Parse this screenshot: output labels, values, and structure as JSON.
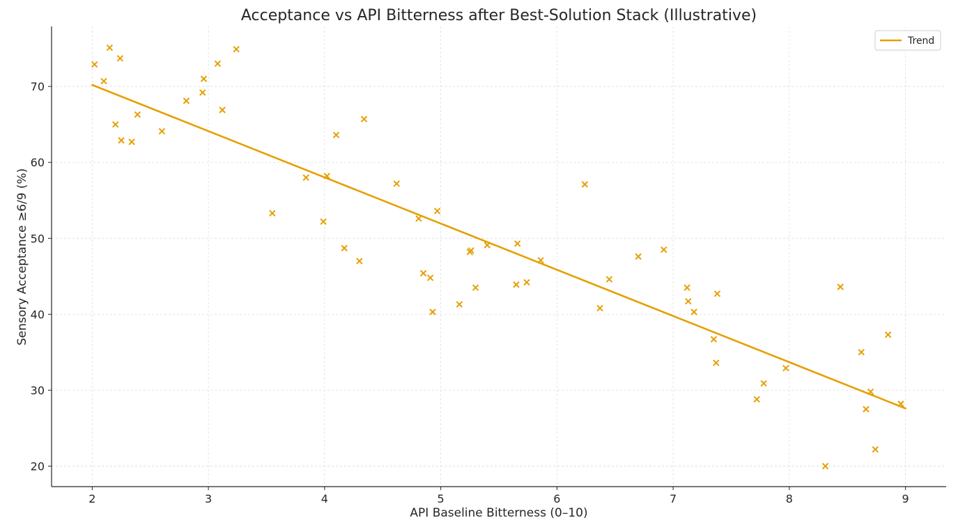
{
  "chart_data": {
    "type": "scatter",
    "title": "Acceptance vs API Bitterness after Best-Solution Stack (Illustrative)",
    "xlabel": "API Baseline Bitterness (0–10)",
    "ylabel": "Sensory Acceptance ≥6/9 (%)",
    "xlim": [
      1.65,
      9.35
    ],
    "ylim": [
      17.3,
      77.9
    ],
    "x_ticks": [
      2,
      3,
      4,
      5,
      6,
      7,
      8,
      9
    ],
    "y_ticks": [
      20,
      30,
      40,
      50,
      60,
      70
    ],
    "grid": true,
    "legend_position": "top-right",
    "color": "#E69F00",
    "marker": "x",
    "points": {
      "x": [
        2.02,
        2.1,
        2.15,
        2.2,
        2.24,
        2.25,
        2.34,
        2.39,
        2.6,
        2.81,
        2.95,
        2.96,
        3.08,
        3.12,
        3.24,
        3.55,
        3.84,
        3.99,
        4.02,
        4.1,
        4.17,
        4.3,
        4.34,
        4.62,
        4.81,
        4.85,
        4.91,
        4.93,
        4.97,
        5.16,
        5.25,
        5.26,
        5.3,
        5.4,
        5.65,
        5.66,
        5.74,
        5.86,
        6.24,
        6.37,
        6.45,
        6.7,
        6.92,
        7.12,
        7.13,
        7.18,
        7.35,
        7.37,
        7.38,
        7.72,
        7.78,
        7.97,
        8.31,
        8.44,
        8.62,
        8.66,
        8.7,
        8.74,
        8.85,
        8.96
      ],
      "y": [
        72.9,
        70.7,
        75.1,
        65.0,
        73.7,
        62.9,
        62.7,
        66.3,
        64.1,
        68.1,
        69.2,
        71.0,
        73.0,
        66.9,
        74.9,
        53.3,
        58.0,
        52.2,
        58.2,
        63.6,
        48.7,
        47.0,
        65.7,
        57.2,
        52.6,
        45.4,
        44.8,
        40.3,
        53.6,
        41.3,
        48.2,
        48.4,
        43.5,
        49.1,
        43.9,
        49.3,
        44.2,
        47.1,
        57.1,
        40.8,
        44.6,
        47.6,
        48.5,
        43.5,
        41.7,
        40.3,
        36.7,
        33.6,
        42.7,
        28.8,
        30.9,
        32.9,
        20.0,
        43.6,
        35.0,
        27.5,
        29.8,
        22.2,
        37.3,
        28.2
      ]
    },
    "series": [
      {
        "name": "Trend",
        "type": "line",
        "x": [
          2.0,
          9.0
        ],
        "y": [
          70.2,
          27.6
        ]
      }
    ]
  }
}
